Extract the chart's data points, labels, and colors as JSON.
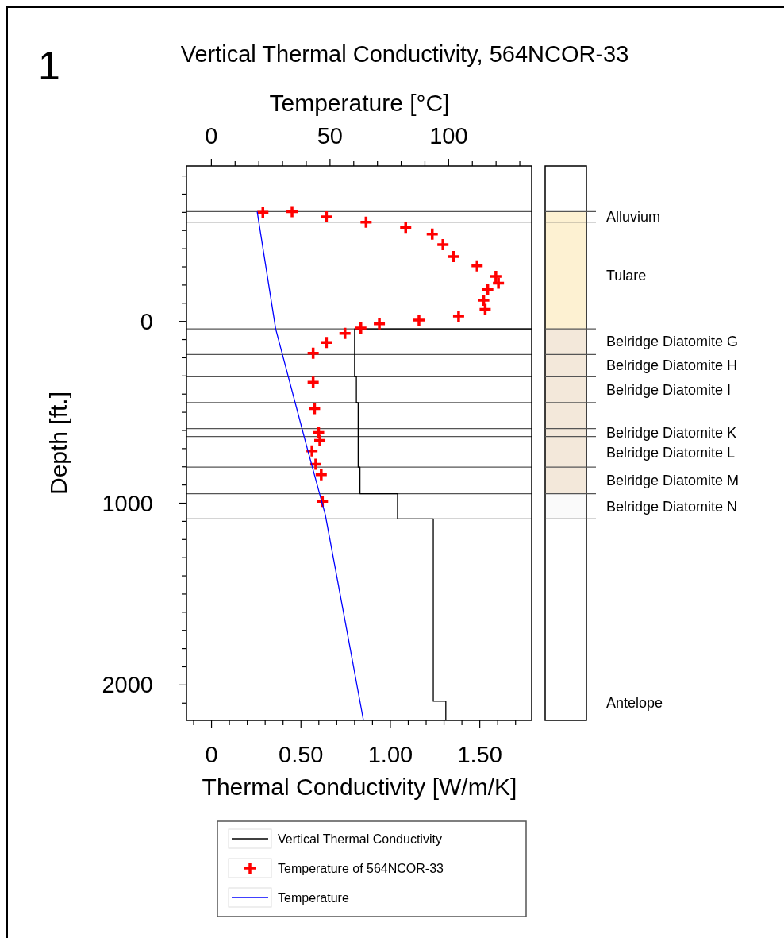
{
  "chart_data": {
    "type": "line",
    "title": "Vertical Thermal Conductivity, 564NCOR-33",
    "annotations": [
      "1",
      "Alluvium",
      "Tulare",
      "Belridge Diatomite G",
      "Belridge Diatomite H",
      "Belridge Diatomite I",
      "Belridge Diatomite K",
      "Belridge Diatomite L",
      "Belridge Diatomite M",
      "Belridge Diatomite N",
      "Antelope"
    ],
    "xlabel": "Thermal Conductivity [W/m/K]",
    "x2label": "Temperature [°C]",
    "ylabel": "Depth [ft.]",
    "xlim": [
      -0.14,
      1.79
    ],
    "xticks": [
      {
        "value": -0.1,
        "label": null
      },
      {
        "value": 0,
        "label": "0"
      },
      {
        "value": 0.1,
        "label": null
      },
      {
        "value": 0.2,
        "label": null
      },
      {
        "value": 0.3,
        "label": null
      },
      {
        "value": 0.4,
        "label": null
      },
      {
        "value": 0.5,
        "label": "0.50"
      },
      {
        "value": 0.6,
        "label": null
      },
      {
        "value": 0.7,
        "label": null
      },
      {
        "value": 0.8,
        "label": null
      },
      {
        "value": 0.9,
        "label": null
      },
      {
        "value": 1,
        "label": "1.00"
      },
      {
        "value": 1.1,
        "label": null
      },
      {
        "value": 1.2,
        "label": null
      },
      {
        "value": 1.3,
        "label": null
      },
      {
        "value": 1.4,
        "label": null
      },
      {
        "value": 1.5,
        "label": "1.50"
      },
      {
        "value": 1.6,
        "label": null
      },
      {
        "value": 1.7,
        "label": null
      }
    ],
    "x2lim": [
      -10.5,
      135
    ],
    "x2ticks": [
      0,
      {
        "value": 10,
        "label": null
      },
      {
        "value": 20,
        "label": null
      },
      {
        "value": 30,
        "label": null
      },
      {
        "value": 40,
        "label": null
      },
      50,
      {
        "value": 60,
        "label": null
      },
      {
        "value": 70,
        "label": null
      },
      {
        "value": 80,
        "label": null
      },
      {
        "value": 90,
        "label": null
      },
      100,
      {
        "value": 110,
        "label": null
      },
      {
        "value": 120,
        "label": null
      },
      {
        "value": 130,
        "label": null
      }
    ],
    "ylim": [
      2195,
      -855
    ],
    "yticks": [
      {
        "value": -800,
        "label": null
      },
      {
        "value": -700,
        "label": null
      },
      {
        "value": -600,
        "label": null
      },
      {
        "value": -500,
        "label": null
      },
      {
        "value": -400,
        "label": null
      },
      {
        "value": -300,
        "label": null
      },
      {
        "value": -200,
        "label": null
      },
      {
        "value": -100,
        "label": null
      },
      0,
      {
        "value": 100,
        "label": null
      },
      {
        "value": 200,
        "label": null
      },
      {
        "value": 300,
        "label": null
      },
      {
        "value": 400,
        "label": null
      },
      {
        "value": 500,
        "label": null
      },
      {
        "value": 600,
        "label": null
      },
      {
        "value": 700,
        "label": null
      },
      {
        "value": 800,
        "label": null
      },
      {
        "value": 900,
        "label": null
      },
      1000,
      {
        "value": 1100,
        "label": null
      },
      {
        "value": 1200,
        "label": null
      },
      {
        "value": 1300,
        "label": null
      },
      {
        "value": 1400,
        "label": null
      },
      {
        "value": 1500,
        "label": null
      },
      {
        "value": 1600,
        "label": null
      },
      {
        "value": 1700,
        "label": null
      },
      {
        "value": 1800,
        "label": null
      },
      {
        "value": 1900,
        "label": null
      },
      2000,
      {
        "value": 2100,
        "label": null
      }
    ],
    "legend": "bottom",
    "series": [
      {
        "name": "Vertical Thermal Conductivity",
        "color": "#000000",
        "marker": "none",
        "x": [
          1.79,
          0.8,
          0.8,
          0.81,
          0.81,
          0.82,
          0.82,
          0.83,
          0.83,
          1.04,
          1.04,
          1.24,
          1.24,
          1.31,
          1.31
        ],
        "values": [
          41,
          41,
          304,
          304,
          447,
          447,
          802,
          802,
          948,
          948,
          1087,
          1087,
          2090,
          2090,
          2195
        ]
      },
      {
        "name": "Temperature of 564NCOR-33",
        "type": "scatter",
        "axis": "x2",
        "color": "#ff0000",
        "marker": "cross",
        "x": [
          21.7,
          34.0,
          48.5,
          65.2,
          81.9,
          93.1,
          97.6,
          102.0,
          112.0,
          119.9,
          121.0,
          116.5,
          114.8,
          115.4,
          104.2,
          87.5,
          70.8,
          63.0,
          56.3,
          48.5,
          42.9,
          42.9,
          43.5,
          45.2,
          45.7,
          42.4,
          44.0,
          46.3,
          46.8
        ],
        "values": [
          -601,
          -604,
          -575,
          -546,
          -517,
          -480,
          -422,
          -357,
          -306,
          -248,
          -211,
          -175,
          -117,
          -66,
          -29,
          -7,
          14,
          36,
          66,
          116,
          175,
          335,
          480,
          611,
          655,
          713,
          786,
          844,
          990
        ]
      },
      {
        "name": "Temperature",
        "axis": "x2",
        "color": "#0000ff",
        "marker": "none",
        "x": [
          19.3,
          27.1,
          40.1,
          48.0,
          56.3,
          64.1
        ],
        "values": [
          -604,
          41,
          684,
          1063,
          1644,
          2195
        ]
      }
    ],
    "ref_lines": [
      {
        "axis": "y",
        "value": -604
      },
      {
        "axis": "y",
        "value": -546
      },
      {
        "axis": "y",
        "value": 41
      },
      {
        "axis": "y",
        "value": 182
      },
      {
        "axis": "y",
        "value": 304
      },
      {
        "axis": "y",
        "value": 447
      },
      {
        "axis": "y",
        "value": 590
      },
      {
        "axis": "y",
        "value": 633
      },
      {
        "axis": "y",
        "value": 802
      },
      {
        "axis": "y",
        "value": 948
      },
      {
        "axis": "y",
        "value": 1087
      }
    ]
  }
}
